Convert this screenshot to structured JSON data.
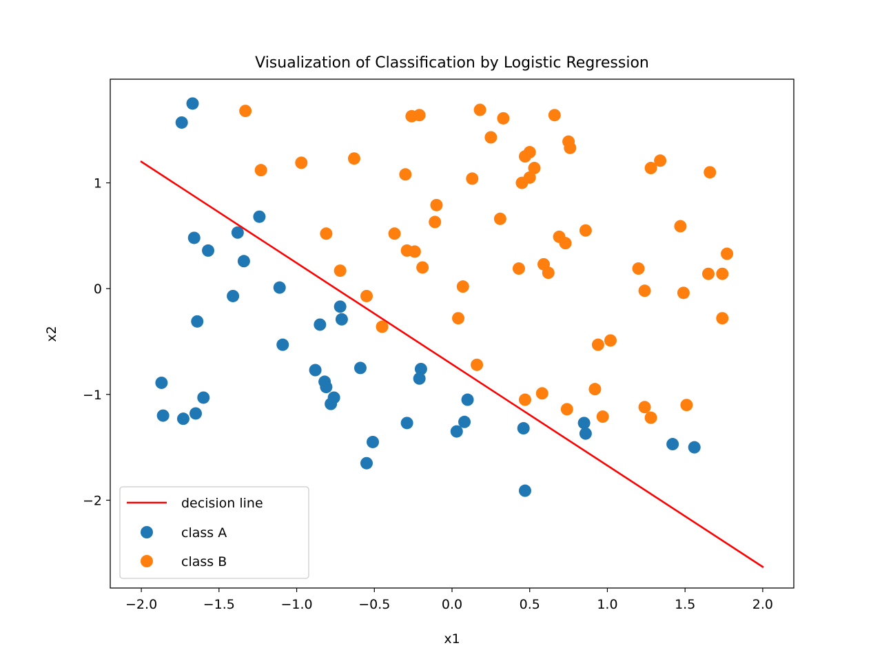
{
  "chart_data": {
    "type": "scatter",
    "title": "Visualization of Classification by Logistic Regression",
    "xlabel": "x1",
    "ylabel": "x2",
    "xlim": [
      -2.2,
      2.2
    ],
    "ylim": [
      -2.83,
      1.98
    ],
    "xticks": [
      -2.0,
      -1.5,
      -1.0,
      -0.5,
      0.0,
      0.5,
      1.0,
      1.5,
      2.0
    ],
    "xtick_labels": [
      "−2.0",
      "−1.5",
      "−1.0",
      "−0.5",
      "0.0",
      "0.5",
      "1.0",
      "1.5",
      "2.0"
    ],
    "yticks": [
      -2,
      -1,
      0,
      1
    ],
    "ytick_labels": [
      "−2",
      "−1",
      "0",
      "1"
    ],
    "grid": false,
    "legend_position": "lower-left",
    "decision_line": {
      "name": "decision line",
      "color": "#ff0000",
      "x": [
        -2.0,
        2.0
      ],
      "y": [
        1.2,
        -2.63
      ]
    },
    "series": [
      {
        "name": "class A",
        "color": "#1f77b4",
        "points": [
          [
            -1.67,
            1.75
          ],
          [
            -1.74,
            1.57
          ],
          [
            -1.24,
            0.68
          ],
          [
            -1.38,
            0.53
          ],
          [
            -1.66,
            0.48
          ],
          [
            -1.57,
            0.36
          ],
          [
            -1.34,
            0.26
          ],
          [
            -1.11,
            0.01
          ],
          [
            -1.41,
            -0.07
          ],
          [
            -0.72,
            -0.17
          ],
          [
            -0.71,
            -0.29
          ],
          [
            -0.85,
            -0.34
          ],
          [
            -1.64,
            -0.31
          ],
          [
            -1.09,
            -0.53
          ],
          [
            -0.88,
            -0.77
          ],
          [
            -0.59,
            -0.75
          ],
          [
            -0.82,
            -0.88
          ],
          [
            -0.81,
            -0.93
          ],
          [
            -0.76,
            -1.03
          ],
          [
            -0.78,
            -1.09
          ],
          [
            -0.2,
            -0.76
          ],
          [
            -0.21,
            -0.85
          ],
          [
            -1.87,
            -0.89
          ],
          [
            -1.86,
            -1.2
          ],
          [
            -1.73,
            -1.23
          ],
          [
            -1.65,
            -1.18
          ],
          [
            -1.6,
            -1.03
          ],
          [
            -0.29,
            -1.27
          ],
          [
            -0.51,
            -1.45
          ],
          [
            -0.55,
            -1.65
          ],
          [
            0.1,
            -1.05
          ],
          [
            0.08,
            -1.26
          ],
          [
            0.03,
            -1.35
          ],
          [
            0.46,
            -1.32
          ],
          [
            0.85,
            -1.27
          ],
          [
            0.86,
            -1.37
          ],
          [
            0.47,
            -1.91
          ],
          [
            1.42,
            -1.47
          ],
          [
            1.56,
            -1.5
          ]
        ]
      },
      {
        "name": "class B",
        "color": "#ff7f0e",
        "points": [
          [
            -1.33,
            1.68
          ],
          [
            -0.26,
            1.63
          ],
          [
            -0.21,
            1.64
          ],
          [
            0.18,
            1.69
          ],
          [
            0.33,
            1.61
          ],
          [
            0.66,
            1.64
          ],
          [
            0.25,
            1.43
          ],
          [
            0.75,
            1.39
          ],
          [
            0.76,
            1.33
          ],
          [
            0.5,
            1.29
          ],
          [
            0.47,
            1.25
          ],
          [
            0.53,
            1.14
          ],
          [
            0.5,
            1.05
          ],
          [
            0.45,
            1.0
          ],
          [
            0.13,
            1.04
          ],
          [
            -1.23,
            1.12
          ],
          [
            -0.97,
            1.19
          ],
          [
            -0.63,
            1.23
          ],
          [
            -0.3,
            1.08
          ],
          [
            1.28,
            1.14
          ],
          [
            1.34,
            1.21
          ],
          [
            1.66,
            1.1
          ],
          [
            -0.1,
            0.79
          ],
          [
            -0.11,
            0.63
          ],
          [
            0.31,
            0.66
          ],
          [
            0.86,
            0.55
          ],
          [
            0.69,
            0.49
          ],
          [
            0.73,
            0.43
          ],
          [
            1.47,
            0.59
          ],
          [
            -0.81,
            0.52
          ],
          [
            -0.37,
            0.52
          ],
          [
            -0.29,
            0.36
          ],
          [
            -0.24,
            0.35
          ],
          [
            -0.72,
            0.17
          ],
          [
            -0.19,
            0.2
          ],
          [
            0.43,
            0.19
          ],
          [
            0.59,
            0.23
          ],
          [
            0.62,
            0.15
          ],
          [
            1.2,
            0.19
          ],
          [
            1.65,
            0.14
          ],
          [
            1.74,
            0.14
          ],
          [
            1.77,
            0.33
          ],
          [
            -0.55,
            -0.07
          ],
          [
            0.07,
            0.02
          ],
          [
            1.24,
            -0.02
          ],
          [
            1.49,
            -0.04
          ],
          [
            -0.45,
            -0.36
          ],
          [
            0.04,
            -0.28
          ],
          [
            1.74,
            -0.28
          ],
          [
            0.16,
            -0.72
          ],
          [
            0.94,
            -0.53
          ],
          [
            1.02,
            -0.49
          ],
          [
            0.47,
            -1.05
          ],
          [
            0.58,
            -0.99
          ],
          [
            0.92,
            -0.95
          ],
          [
            0.74,
            -1.14
          ],
          [
            0.97,
            -1.21
          ],
          [
            1.24,
            -1.12
          ],
          [
            1.28,
            -1.22
          ],
          [
            1.51,
            -1.1
          ]
        ]
      }
    ]
  }
}
